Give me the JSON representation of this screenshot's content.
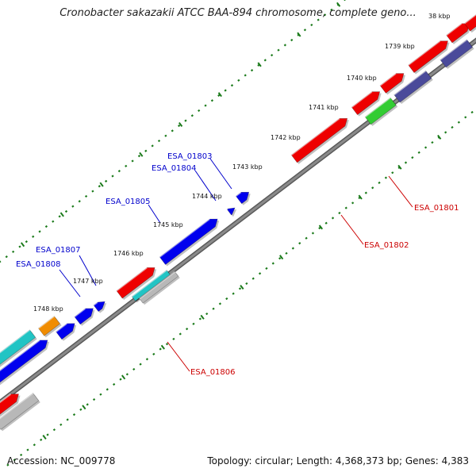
{
  "title": "Cronobacter sakazakii ATCC BAA-894 chromosome, complete geno...",
  "footer": {
    "accession": "Accession: NC_009778",
    "summary": "Topology: circular; Length: 4,368,373 bp; Genes: 4,383"
  },
  "ticks": [
    "38 kbp",
    "1739 kbp",
    "1740 kbp",
    "1741 kbp",
    "1742 kbp",
    "1743 kbp",
    "1744 kbp",
    "1745 kbp",
    "1746 kbp",
    "1747 kbp",
    "1748 kbp"
  ],
  "gene_labels": [
    {
      "name": "ESA_01801",
      "color": "#cc0000"
    },
    {
      "name": "ESA_01802",
      "color": "#cc0000"
    },
    {
      "name": "ESA_01803",
      "color": "#0000cc"
    },
    {
      "name": "ESA_01804",
      "color": "#0000cc"
    },
    {
      "name": "ESA_01805",
      "color": "#0000cc"
    },
    {
      "name": "ESA_01806",
      "color": "#cc0000"
    },
    {
      "name": "ESA_01807",
      "color": "#0000cc"
    },
    {
      "name": "ESA_01808",
      "color": "#0000cc"
    }
  ],
  "colors": {
    "backbone": "#8a8a8a",
    "tick_dots": "#1a7a1a",
    "forward_gene": "#ee0000",
    "reverse_gene": "#0000ee",
    "orange_gene": "#f08c00",
    "cyan_gene": "#22c4c4",
    "green_gene": "#33cc33",
    "slate_gene": "#4a4a9a",
    "gray_gene": "#b8b8b8"
  }
}
